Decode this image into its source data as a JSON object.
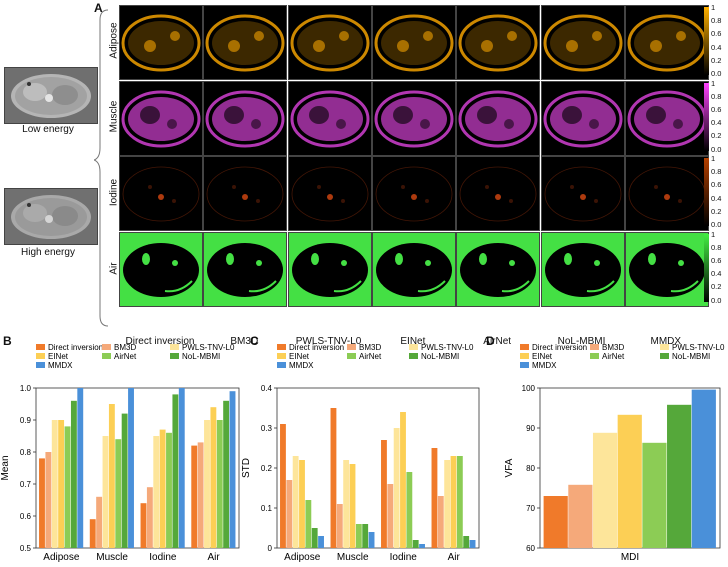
{
  "panels": {
    "A": "A",
    "B": "B",
    "C": "C",
    "D": "D"
  },
  "inputs": [
    {
      "label": "Low energy"
    },
    {
      "label": "High energy"
    }
  ],
  "rows": [
    {
      "label": "Adipose",
      "color": "#f0a000",
      "cmap_end": "#ffb000"
    },
    {
      "label": "Muscle",
      "color": "#d040d0",
      "cmap_end": "#ff44ff"
    },
    {
      "label": "Iodine",
      "color": "#c04010",
      "cmap_end": "#b34000"
    },
    {
      "label": "Air",
      "color": "#44dd44",
      "cmap_end": "#44ee44"
    }
  ],
  "columns": [
    "Direct inversion",
    "BM3D",
    "PWLS-TNV-L0",
    "EINet",
    "AirNet",
    "NoL-MBMI",
    "MMDX"
  ],
  "colorbar_ticks": [
    "1",
    "0.8",
    "0.6",
    "0.4",
    "0.2",
    "0.0"
  ],
  "legend_items": [
    {
      "name": "Direct inversion",
      "color": "#f07a2a"
    },
    {
      "name": "BM3D",
      "color": "#f5a97a"
    },
    {
      "name": "PWLS-TNV-L0",
      "color": "#fde59a"
    },
    {
      "name": "EINet",
      "color": "#fccf55"
    },
    {
      "name": "AirNet",
      "color": "#8ccc55"
    },
    {
      "name": "NoL-MBMI",
      "color": "#55a83a"
    },
    {
      "name": "MMDX",
      "color": "#4a90d9"
    }
  ],
  "chart_data": [
    {
      "type": "bar",
      "panel": "B",
      "categories": [
        "Adipose",
        "Muscle",
        "Iodine",
        "Air"
      ],
      "ylabel": "Mean",
      "ylim": [
        0.5,
        1.0
      ],
      "yticks": [
        "0.5",
        "0.6",
        "0.7",
        "0.8",
        "0.9",
        "1.0"
      ],
      "series": [
        {
          "name": "Direct inversion",
          "values": [
            0.78,
            0.59,
            0.64,
            0.82
          ]
        },
        {
          "name": "BM3D",
          "values": [
            0.8,
            0.66,
            0.69,
            0.83
          ]
        },
        {
          "name": "PWLS-TNV-L0",
          "values": [
            0.9,
            0.85,
            0.85,
            0.9
          ]
        },
        {
          "name": "EINet",
          "values": [
            0.9,
            0.95,
            0.87,
            0.94
          ]
        },
        {
          "name": "AirNet",
          "values": [
            0.88,
            0.84,
            0.86,
            0.9
          ]
        },
        {
          "name": "NoL-MBMI",
          "values": [
            0.96,
            0.92,
            0.98,
            0.96
          ]
        },
        {
          "name": "MMDX",
          "values": [
            1.0,
            1.0,
            1.0,
            0.99
          ]
        }
      ]
    },
    {
      "type": "bar",
      "panel": "C",
      "categories": [
        "Adipose",
        "Muscle",
        "Iodine",
        "Air"
      ],
      "ylabel": "STD",
      "ylim": [
        0,
        0.4
      ],
      "yticks": [
        "0",
        "0.1",
        "0.2",
        "0.3",
        "0.4"
      ],
      "series": [
        {
          "name": "Direct inversion",
          "values": [
            0.31,
            0.35,
            0.27,
            0.25
          ]
        },
        {
          "name": "BM3D",
          "values": [
            0.17,
            0.11,
            0.16,
            0.13
          ]
        },
        {
          "name": "PWLS-TNV-L0",
          "values": [
            0.23,
            0.22,
            0.3,
            0.22
          ]
        },
        {
          "name": "EINet",
          "values": [
            0.22,
            0.21,
            0.34,
            0.23
          ]
        },
        {
          "name": "AirNet",
          "values": [
            0.12,
            0.06,
            0.19,
            0.23
          ]
        },
        {
          "name": "NoL-MBMI",
          "values": [
            0.05,
            0.06,
            0.02,
            0.03
          ]
        },
        {
          "name": "MMDX",
          "values": [
            0.03,
            0.04,
            0.01,
            0.02
          ]
        }
      ]
    },
    {
      "type": "bar",
      "panel": "D",
      "categories": [
        "MDI"
      ],
      "ylabel": "VFA",
      "ylim": [
        60,
        100
      ],
      "yticks": [
        "60",
        "70",
        "80",
        "90",
        "100"
      ],
      "series": [
        {
          "name": "Direct inversion",
          "values": [
            73.0
          ]
        },
        {
          "name": "BM3D",
          "values": [
            75.8
          ]
        },
        {
          "name": "PWLS-TNV-L0",
          "values": [
            88.8
          ]
        },
        {
          "name": "EINet",
          "values": [
            93.3
          ]
        },
        {
          "name": "AirNet",
          "values": [
            86.3
          ]
        },
        {
          "name": "NoL-MBMI",
          "values": [
            95.8
          ]
        },
        {
          "name": "MMDX",
          "values": [
            99.6
          ]
        }
      ]
    }
  ]
}
